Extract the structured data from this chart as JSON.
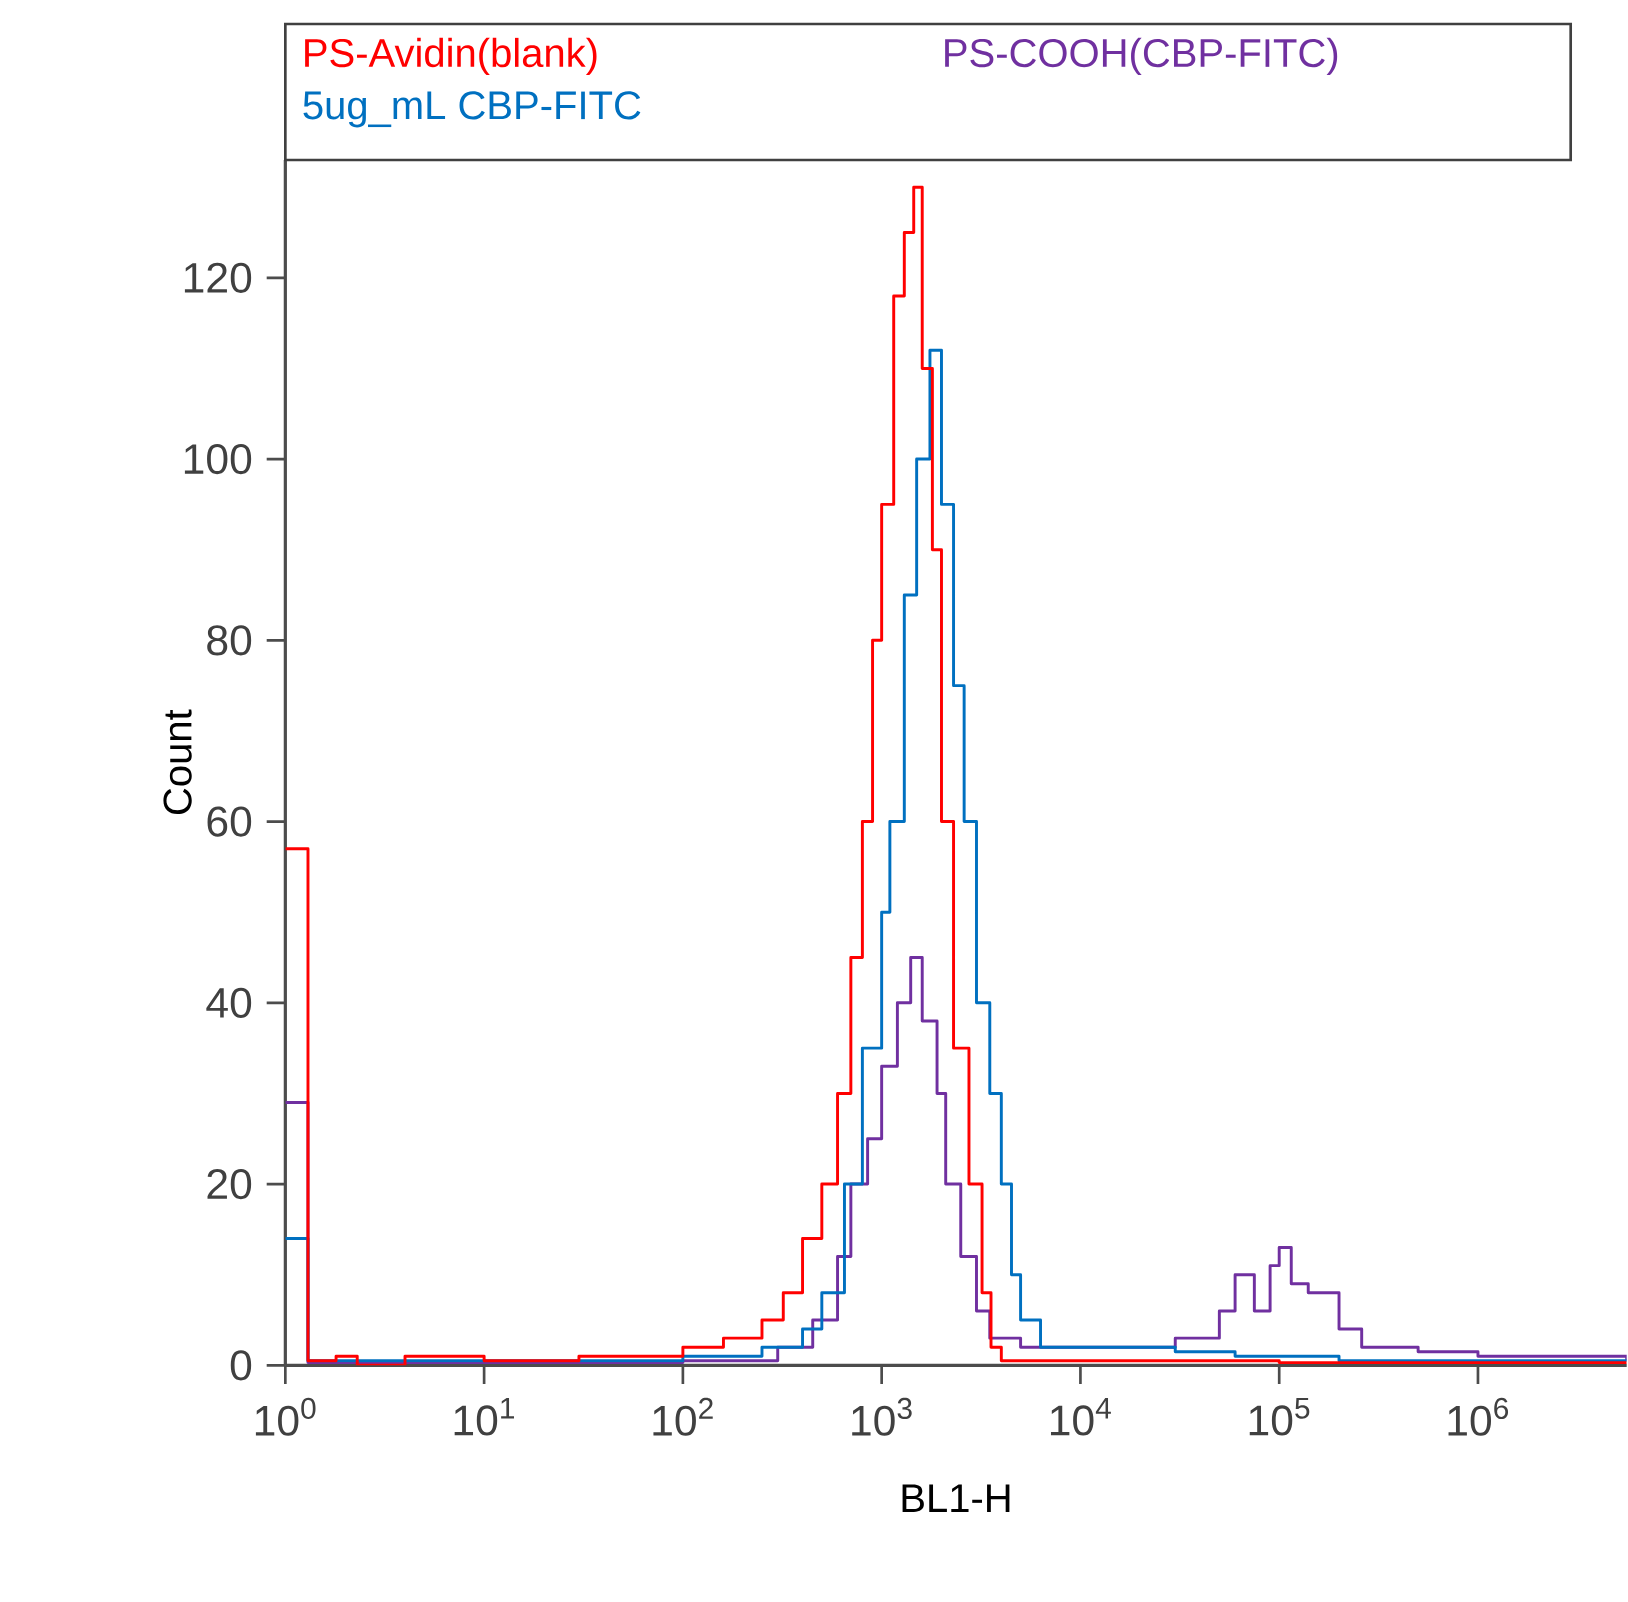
{
  "chart_data": {
    "type": "step",
    "xlabel": "BL1-H",
    "ylabel": "Count",
    "log": "x",
    "grid": false,
    "legend": "top",
    "marker": "none",
    "line_style": "solid",
    "xlim": [
      1,
      5600000
    ],
    "ylim": [
      0,
      133
    ],
    "xticks": [
      {
        "value": 1,
        "label": "10$^{0}$"
      },
      {
        "value": 10,
        "label": "10$^{1}$"
      },
      {
        "value": 100,
        "label": "10$^{2}$"
      },
      {
        "value": 1000,
        "label": "10$^{3}$"
      },
      {
        "value": 10000,
        "label": "10$^{4}$"
      },
      {
        "value": 100000,
        "label": "10$^{5}$"
      },
      {
        "value": 1000000,
        "label": "10$^{6}$"
      }
    ],
    "yticks": [
      0,
      20,
      40,
      60,
      80,
      100,
      120
    ],
    "series": [
      {
        "name": "PS-Avidin(blank)",
        "color": "#ff0000",
        "x": [
          1,
          1.3,
          1.8,
          2.3,
          4,
          10,
          30,
          100,
          160,
          250,
          320,
          400,
          500,
          600,
          700,
          800,
          900,
          1000,
          1150,
          1300,
          1450,
          1600,
          1800,
          2000,
          2300,
          2750,
          3200,
          3550,
          4000,
          10000,
          100000,
          1000000,
          5600000
        ],
        "values": [
          57,
          0.5,
          1,
          0,
          1,
          0.5,
          1,
          2,
          3,
          5,
          8,
          14,
          20,
          30,
          45,
          60,
          80,
          95,
          118,
          125,
          130,
          110,
          90,
          60,
          35,
          20,
          8,
          2,
          0.5,
          0.5,
          0.3,
          0.3,
          0.3
        ]
      },
      {
        "name": "5ug_mL CBP-FITC",
        "color": "#0070c0",
        "x": [
          1,
          1.3,
          10,
          100,
          250,
          400,
          500,
          650,
          800,
          1000,
          1100,
          1300,
          1500,
          1750,
          2000,
          2300,
          2600,
          3000,
          3500,
          4000,
          4500,
          5000,
          6300,
          10000,
          30000,
          60000,
          200000,
          5600000
        ],
        "values": [
          14,
          0.5,
          0.5,
          1,
          2,
          4,
          8,
          20,
          35,
          50,
          60,
          85,
          100,
          112,
          95,
          75,
          60,
          40,
          30,
          20,
          10,
          5,
          2,
          2,
          1.5,
          1,
          0.5,
          0.5
        ]
      },
      {
        "name": "PS-COOH(CBP-FITC)",
        "color": "#7030a0",
        "x": [
          1,
          1.3,
          10,
          100,
          300,
          450,
          600,
          700,
          850,
          1000,
          1200,
          1400,
          1600,
          1900,
          2100,
          2500,
          3000,
          3500,
          5000,
          10000,
          30000,
          50000,
          60000,
          75000,
          90000,
          100000,
          115000,
          140000,
          200000,
          260000,
          500000,
          1000000,
          5600000
        ],
        "values": [
          29,
          0.3,
          0.3,
          0.5,
          2,
          5,
          12,
          20,
          25,
          33,
          40,
          45,
          38,
          30,
          20,
          12,
          6,
          3,
          2,
          2,
          3,
          6,
          10,
          6,
          11,
          13,
          9,
          8,
          4,
          2,
          1.5,
          1,
          0.5
        ]
      }
    ]
  }
}
